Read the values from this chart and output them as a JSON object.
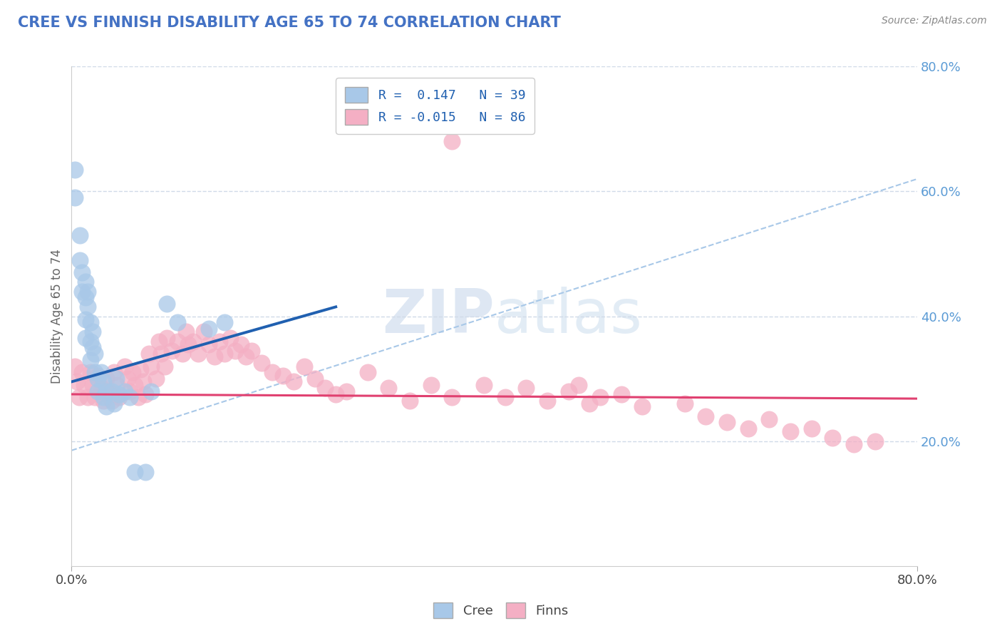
{
  "title": "CREE VS FINNISH DISABILITY AGE 65 TO 74 CORRELATION CHART",
  "source_text": "Source: ZipAtlas.com",
  "ylabel": "Disability Age 65 to 74",
  "xlim": [
    0.0,
    0.8
  ],
  "ylim": [
    0.0,
    0.8
  ],
  "yticks": [
    0.2,
    0.4,
    0.6,
    0.8
  ],
  "ytick_labels": [
    "20.0%",
    "40.0%",
    "60.0%",
    "80.0%"
  ],
  "xtick_labels": [
    "0.0%",
    "80.0%"
  ],
  "cree_color": "#a8c8e8",
  "finn_color": "#f4afc4",
  "cree_line_color": "#2060b0",
  "finn_line_color": "#e04070",
  "dash_color": "#a8c8e8",
  "watermark_color": "#c8d8ec",
  "background_color": "#ffffff",
  "title_color": "#4472c4",
  "source_color": "#888888",
  "legend_label_cree": "R =  0.147   N = 39",
  "legend_label_finn": "R = -0.015   N = 86",
  "legend_text_color": "#2060b0",
  "cree_line_x0": 0.0,
  "cree_line_x1": 0.25,
  "cree_line_y0": 0.295,
  "cree_line_y1": 0.415,
  "finn_line_x0": 0.0,
  "finn_line_x1": 0.8,
  "finn_line_y0": 0.275,
  "finn_line_y1": 0.268,
  "dash_line_x0": 0.0,
  "dash_line_x1": 0.8,
  "dash_line_y0": 0.185,
  "dash_line_y1": 0.62,
  "cree_x": [
    0.003,
    0.003,
    0.008,
    0.008,
    0.01,
    0.01,
    0.013,
    0.013,
    0.013,
    0.013,
    0.015,
    0.015,
    0.018,
    0.018,
    0.018,
    0.02,
    0.02,
    0.022,
    0.022,
    0.025,
    0.025,
    0.028,
    0.03,
    0.03,
    0.033,
    0.033,
    0.038,
    0.04,
    0.042,
    0.045,
    0.05,
    0.055,
    0.06,
    0.07,
    0.075,
    0.09,
    0.1,
    0.13,
    0.145
  ],
  "cree_y": [
    0.635,
    0.59,
    0.53,
    0.49,
    0.47,
    0.44,
    0.455,
    0.43,
    0.395,
    0.365,
    0.44,
    0.415,
    0.39,
    0.36,
    0.33,
    0.375,
    0.35,
    0.34,
    0.31,
    0.3,
    0.28,
    0.31,
    0.295,
    0.27,
    0.28,
    0.255,
    0.28,
    0.26,
    0.3,
    0.275,
    0.28,
    0.27,
    0.15,
    0.15,
    0.28,
    0.42,
    0.39,
    0.38,
    0.39
  ],
  "finn_x": [
    0.003,
    0.005,
    0.007,
    0.01,
    0.012,
    0.015,
    0.018,
    0.02,
    0.022,
    0.025,
    0.028,
    0.03,
    0.033,
    0.035,
    0.038,
    0.04,
    0.043,
    0.045,
    0.05,
    0.053,
    0.055,
    0.058,
    0.06,
    0.063,
    0.065,
    0.068,
    0.07,
    0.073,
    0.075,
    0.08,
    0.083,
    0.085,
    0.088,
    0.09,
    0.095,
    0.1,
    0.105,
    0.108,
    0.11,
    0.115,
    0.12,
    0.125,
    0.13,
    0.135,
    0.14,
    0.145,
    0.15,
    0.155,
    0.16,
    0.165,
    0.17,
    0.18,
    0.19,
    0.2,
    0.21,
    0.22,
    0.23,
    0.24,
    0.25,
    0.26,
    0.28,
    0.3,
    0.32,
    0.34,
    0.36,
    0.39,
    0.41,
    0.43,
    0.45,
    0.47,
    0.49,
    0.52,
    0.54,
    0.58,
    0.6,
    0.62,
    0.64,
    0.66,
    0.68,
    0.7,
    0.72,
    0.74,
    0.76,
    0.48,
    0.5,
    0.36
  ],
  "finn_y": [
    0.32,
    0.295,
    0.27,
    0.31,
    0.29,
    0.27,
    0.31,
    0.29,
    0.27,
    0.305,
    0.285,
    0.265,
    0.3,
    0.28,
    0.265,
    0.31,
    0.29,
    0.27,
    0.32,
    0.3,
    0.28,
    0.31,
    0.29,
    0.27,
    0.315,
    0.295,
    0.275,
    0.34,
    0.32,
    0.3,
    0.36,
    0.34,
    0.32,
    0.365,
    0.345,
    0.36,
    0.34,
    0.375,
    0.355,
    0.36,
    0.34,
    0.375,
    0.355,
    0.335,
    0.36,
    0.34,
    0.365,
    0.345,
    0.355,
    0.335,
    0.345,
    0.325,
    0.31,
    0.305,
    0.295,
    0.32,
    0.3,
    0.285,
    0.275,
    0.28,
    0.31,
    0.285,
    0.265,
    0.29,
    0.27,
    0.29,
    0.27,
    0.285,
    0.265,
    0.28,
    0.26,
    0.275,
    0.255,
    0.26,
    0.24,
    0.23,
    0.22,
    0.235,
    0.215,
    0.22,
    0.205,
    0.195,
    0.2,
    0.29,
    0.27,
    0.68
  ]
}
